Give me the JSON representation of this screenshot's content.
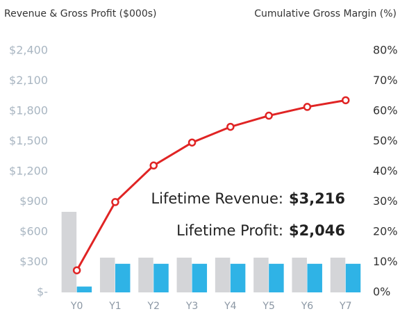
{
  "chart_data": {
    "type": "bar_line",
    "ylabel": "Revenue & Gross Profit ($000s)",
    "y2label": "Cumulative Gross Margin (%)",
    "categories": [
      "Y0",
      "Y1",
      "Y2",
      "Y3",
      "Y4",
      "Y5",
      "Y6",
      "Y7"
    ],
    "series": [
      {
        "name": "Revenue",
        "type": "bar",
        "color": "#d4d5d8",
        "values": [
          800,
          345,
          345,
          345,
          345,
          345,
          345,
          345
        ]
      },
      {
        "name": "Gross Profit",
        "type": "bar",
        "color": "#2fb3e6",
        "values": [
          58,
          284,
          284,
          284,
          284,
          284,
          284,
          284
        ]
      },
      {
        "name": "Cumulative Gross Margin",
        "type": "line",
        "axis": "y2",
        "color": "#e02424",
        "values": [
          7.3,
          29.9,
          42.0,
          49.6,
          54.8,
          58.5,
          61.4,
          63.6
        ]
      }
    ],
    "ylim": [
      0,
      2400
    ],
    "yticks": [
      {
        "value": 0,
        "label": "$-"
      },
      {
        "value": 300,
        "label": "$300"
      },
      {
        "value": 600,
        "label": "$600"
      },
      {
        "value": 900,
        "label": "$900"
      },
      {
        "value": 1200,
        "label": "$1,200"
      },
      {
        "value": 1500,
        "label": "$1,500"
      },
      {
        "value": 1800,
        "label": "$1,800"
      },
      {
        "value": 2100,
        "label": "$2,100"
      },
      {
        "value": 2400,
        "label": "$2,400"
      }
    ],
    "y2lim": [
      0,
      80
    ],
    "y2ticks": [
      {
        "value": 0,
        "label": "0%"
      },
      {
        "value": 10,
        "label": "10%"
      },
      {
        "value": 20,
        "label": "20%"
      },
      {
        "value": 30,
        "label": "30%"
      },
      {
        "value": 40,
        "label": "40%"
      },
      {
        "value": 50,
        "label": "50%"
      },
      {
        "value": 60,
        "label": "60%"
      },
      {
        "value": 70,
        "label": "70%"
      },
      {
        "value": 80,
        "label": "80%"
      }
    ],
    "annotations": [
      {
        "label": "Lifetime Revenue:",
        "value": "$3,216"
      },
      {
        "label": "Lifetime Profit:",
        "value": "$2,046"
      }
    ]
  }
}
